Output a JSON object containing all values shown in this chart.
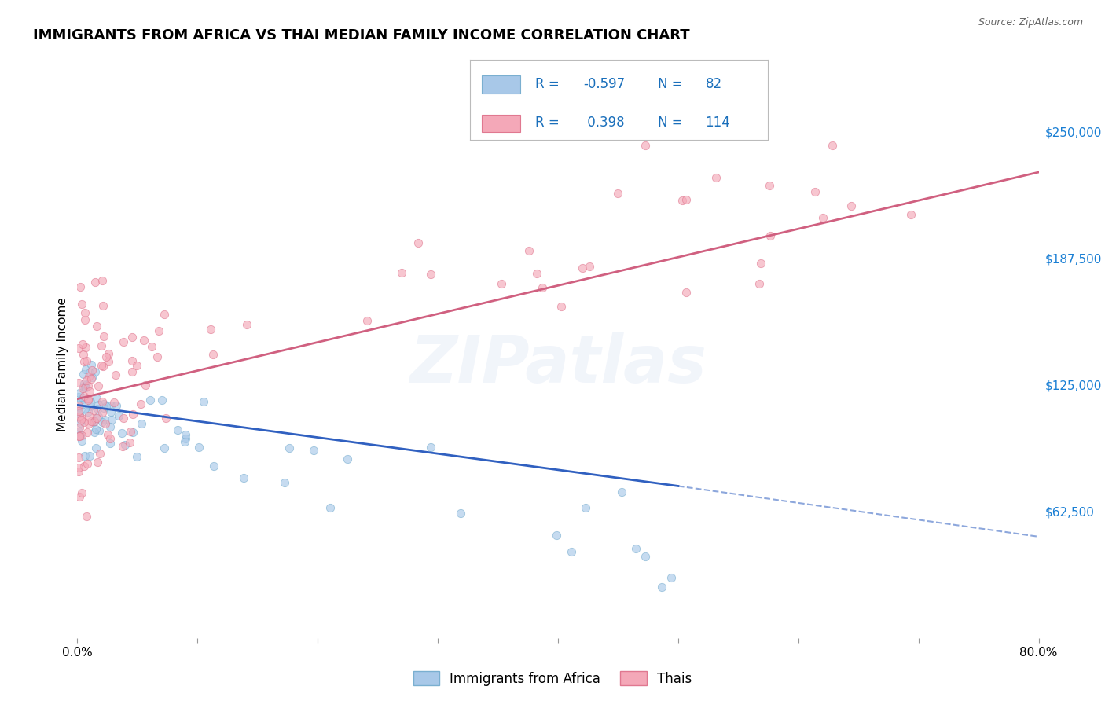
{
  "title": "IMMIGRANTS FROM AFRICA VS THAI MEDIAN FAMILY INCOME CORRELATION CHART",
  "source": "Source: ZipAtlas.com",
  "ylabel": "Median Family Income",
  "y_ticks": [
    62500,
    125000,
    187500,
    250000
  ],
  "y_tick_labels": [
    "$62,500",
    "$125,000",
    "$187,500",
    "$250,000"
  ],
  "y_min": 0,
  "y_max": 270000,
  "x_min": 0.0,
  "x_max": 0.8,
  "africa_color": "#a8c8e8",
  "africa_edge": "#7aafd0",
  "thai_color": "#f4a8b8",
  "thai_edge": "#e07890",
  "africa_line_color": "#3060c0",
  "thai_line_color": "#d06080",
  "grid_color": "#d0d0d0",
  "background_color": "#ffffff",
  "title_fontsize": 13,
  "axis_label_fontsize": 11,
  "tick_fontsize": 11,
  "legend_fontsize": 12,
  "scatter_size": 55,
  "scatter_alpha": 0.65,
  "africa_R": "-0.597",
  "africa_N": "82",
  "thai_R": "0.398",
  "thai_N": "114",
  "watermark_color": "#4472c4",
  "watermark_alpha": 0.07
}
